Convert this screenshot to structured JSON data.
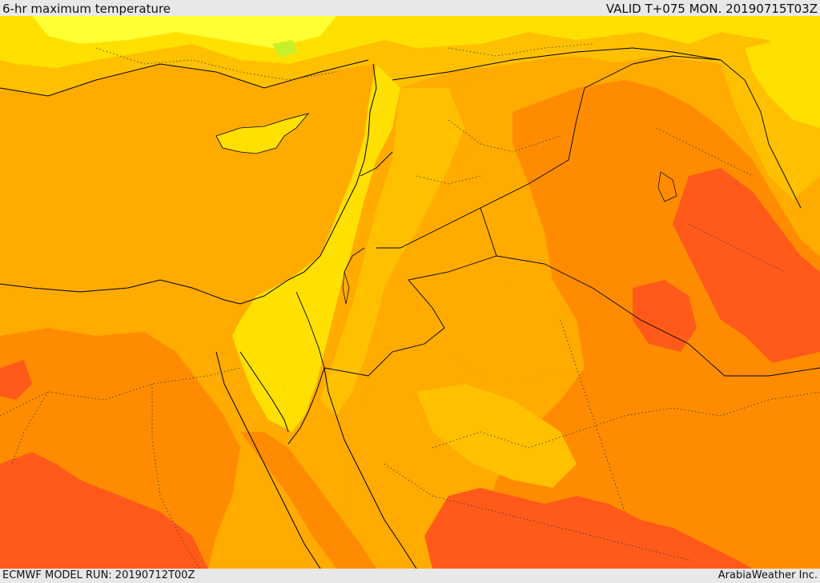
{
  "header": {
    "title": "6-hr maximum temperature",
    "valid": "VALID T+075 MON. 20190715T03Z"
  },
  "footer": {
    "model_run": "ECMWF MODEL RUN: 20190712T00Z",
    "credit": "ArabiaWeather Inc."
  },
  "palette": {
    "pale_yellow": "#ffff33",
    "yellow": "#ffe000",
    "light_orange": "#ffc000",
    "amber": "#ffab00",
    "orange": "#ff8c00",
    "deep_orange": "#ff5a1a",
    "green_tint": "#c8f02a"
  }
}
